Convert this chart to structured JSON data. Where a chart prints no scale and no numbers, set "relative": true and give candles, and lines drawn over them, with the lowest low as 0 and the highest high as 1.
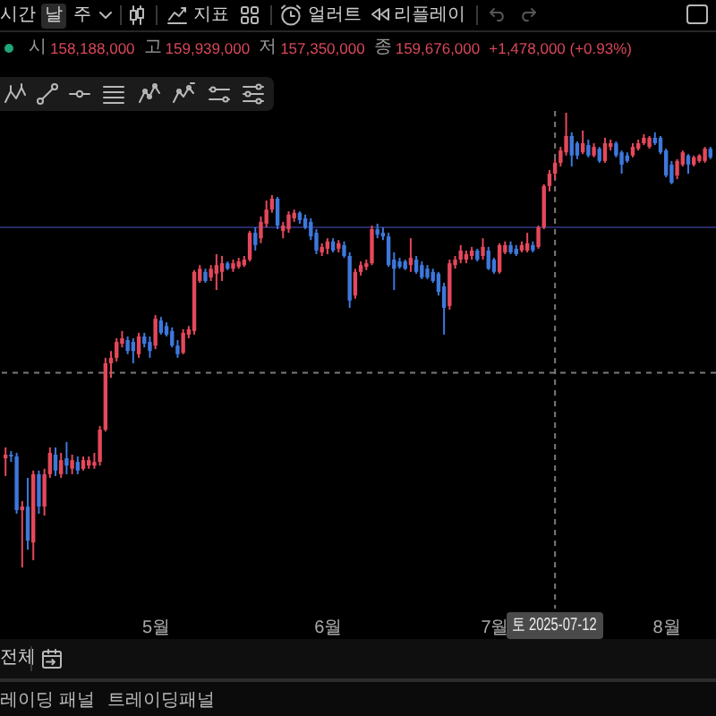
{
  "chart_data": {
    "type": "candlestick",
    "relative": true,
    "x": [
      "2025-04-04",
      "2025-04-05",
      "2025-04-06",
      "2025-04-07",
      "2025-04-08",
      "2025-04-09",
      "2025-04-10",
      "2025-04-11",
      "2025-04-12",
      "2025-04-13",
      "2025-04-14",
      "2025-04-15",
      "2025-04-16",
      "2025-04-17",
      "2025-04-18",
      "2025-04-19",
      "2025-04-20",
      "2025-04-21",
      "2025-04-22",
      "2025-04-23",
      "2025-04-24",
      "2025-04-25",
      "2025-04-26",
      "2025-04-27",
      "2025-04-28",
      "2025-04-29",
      "2025-04-30",
      "2025-05-01",
      "2025-05-02",
      "2025-05-03",
      "2025-05-04",
      "2025-05-05",
      "2025-05-06",
      "2025-05-07",
      "2025-05-08",
      "2025-05-09",
      "2025-05-10",
      "2025-05-11",
      "2025-05-12",
      "2025-05-13",
      "2025-05-14",
      "2025-05-15",
      "2025-05-16",
      "2025-05-17",
      "2025-05-18",
      "2025-05-19",
      "2025-05-20",
      "2025-05-21",
      "2025-05-22",
      "2025-05-23",
      "2025-05-24",
      "2025-05-25",
      "2025-05-26",
      "2025-05-27",
      "2025-05-28",
      "2025-05-29",
      "2025-05-30",
      "2025-05-31",
      "2025-06-01",
      "2025-06-02",
      "2025-06-03",
      "2025-06-04",
      "2025-06-05",
      "2025-06-06",
      "2025-06-07",
      "2025-06-08",
      "2025-06-09",
      "2025-06-10",
      "2025-06-11",
      "2025-06-12",
      "2025-06-13",
      "2025-06-14",
      "2025-06-15",
      "2025-06-16",
      "2025-06-17",
      "2025-06-18",
      "2025-06-19",
      "2025-06-20",
      "2025-06-21",
      "2025-06-22",
      "2025-06-23",
      "2025-06-24",
      "2025-06-25",
      "2025-06-26",
      "2025-06-27",
      "2025-06-28",
      "2025-06-29",
      "2025-06-30",
      "2025-07-01",
      "2025-07-02",
      "2025-07-03",
      "2025-07-04",
      "2025-07-05",
      "2025-07-06",
      "2025-07-07",
      "2025-07-08",
      "2025-07-09",
      "2025-07-10",
      "2025-07-11",
      "2025-07-12",
      "2025-07-13",
      "2025-07-14",
      "2025-07-15",
      "2025-07-16",
      "2025-07-17",
      "2025-07-18",
      "2025-07-19",
      "2025-07-20",
      "2025-07-21",
      "2025-07-22",
      "2025-07-23",
      "2025-07-24",
      "2025-07-25",
      "2025-07-26",
      "2025-07-27",
      "2025-07-28",
      "2025-07-29",
      "2025-07-30",
      "2025-07-31",
      "2025-08-01",
      "2025-08-02",
      "2025-08-03",
      "2025-08-04",
      "2025-08-05",
      "2025-08-06",
      "2025-08-07",
      "2025-08-08",
      "2025-08-09"
    ],
    "ohlc": [
      [
        0.24,
        0.264,
        0.201,
        0.248
      ],
      [
        0.248,
        0.256,
        0.232,
        0.244
      ],
      [
        0.244,
        0.252,
        0.118,
        0.126
      ],
      [
        0.126,
        0.146,
        0,
        0.134
      ],
      [
        0.134,
        0.197,
        0.039,
        0.059
      ],
      [
        0.055,
        0.213,
        0.016,
        0.205
      ],
      [
        0.205,
        0.213,
        0.118,
        0.134
      ],
      [
        0.134,
        0.217,
        0.114,
        0.205
      ],
      [
        0.205,
        0.264,
        0.197,
        0.252
      ],
      [
        0.248,
        0.264,
        0.201,
        0.213
      ],
      [
        0.205,
        0.252,
        0.197,
        0.236
      ],
      [
        0.24,
        0.276,
        0.205,
        0.224
      ],
      [
        0.217,
        0.248,
        0.205,
        0.236
      ],
      [
        0.232,
        0.244,
        0.205,
        0.213
      ],
      [
        0.217,
        0.244,
        0.213,
        0.236
      ],
      [
        0.224,
        0.244,
        0.217,
        0.236
      ],
      [
        0.224,
        0.252,
        0.217,
        0.232
      ],
      [
        0.232,
        0.311,
        0.224,
        0.303
      ],
      [
        0.303,
        0.461,
        0.299,
        0.449
      ],
      [
        0.449,
        0.476,
        0.417,
        0.461
      ],
      [
        0.461,
        0.504,
        0.453,
        0.496
      ],
      [
        0.492,
        0.52,
        0.484,
        0.504
      ],
      [
        0.5,
        0.508,
        0.469,
        0.476
      ],
      [
        0.496,
        0.504,
        0.449,
        0.476
      ],
      [
        0.469,
        0.516,
        0.461,
        0.508
      ],
      [
        0.508,
        0.516,
        0.484,
        0.492
      ],
      [
        0.496,
        0.508,
        0.461,
        0.476
      ],
      [
        0.488,
        0.555,
        0.48,
        0.547
      ],
      [
        0.543,
        0.551,
        0.512,
        0.516
      ],
      [
        0.531,
        0.539,
        0.508,
        0.512
      ],
      [
        0.52,
        0.528,
        0.484,
        0.488
      ],
      [
        0.488,
        0.5,
        0.461,
        0.469
      ],
      [
        0.472,
        0.524,
        0.469,
        0.516
      ],
      [
        0.512,
        0.531,
        0.504,
        0.524
      ],
      [
        0.52,
        0.654,
        0.512,
        0.65
      ],
      [
        0.63,
        0.665,
        0.626,
        0.657
      ],
      [
        0.65,
        0.657,
        0.626,
        0.63
      ],
      [
        0.638,
        0.665,
        0.63,
        0.657
      ],
      [
        0.646,
        0.689,
        0.61,
        0.665
      ],
      [
        0.65,
        0.685,
        0.63,
        0.669
      ],
      [
        0.669,
        0.673,
        0.654,
        0.657
      ],
      [
        0.657,
        0.677,
        0.65,
        0.669
      ],
      [
        0.661,
        0.681,
        0.657,
        0.673
      ],
      [
        0.665,
        0.685,
        0.661,
        0.677
      ],
      [
        0.677,
        0.74,
        0.673,
        0.736
      ],
      [
        0.736,
        0.748,
        0.697,
        0.709
      ],
      [
        0.724,
        0.772,
        0.713,
        0.76
      ],
      [
        0.756,
        0.807,
        0.748,
        0.787
      ],
      [
        0.787,
        0.819,
        0.78,
        0.811
      ],
      [
        0.811,
        0.815,
        0.744,
        0.752
      ],
      [
        0.74,
        0.76,
        0.724,
        0.752
      ],
      [
        0.744,
        0.783,
        0.736,
        0.776
      ],
      [
        0.768,
        0.787,
        0.76,
        0.78
      ],
      [
        0.78,
        0.783,
        0.756,
        0.764
      ],
      [
        0.768,
        0.776,
        0.744,
        0.748
      ],
      [
        0.76,
        0.768,
        0.72,
        0.728
      ],
      [
        0.736,
        0.744,
        0.689,
        0.697
      ],
      [
        0.693,
        0.713,
        0.685,
        0.705
      ],
      [
        0.701,
        0.724,
        0.689,
        0.717
      ],
      [
        0.717,
        0.724,
        0.693,
        0.697
      ],
      [
        0.701,
        0.72,
        0.693,
        0.713
      ],
      [
        0.709,
        0.717,
        0.681,
        0.685
      ],
      [
        0.685,
        0.693,
        0.571,
        0.587
      ],
      [
        0.598,
        0.657,
        0.591,
        0.65
      ],
      [
        0.65,
        0.673,
        0.642,
        0.665
      ],
      [
        0.661,
        0.677,
        0.654,
        0.669
      ],
      [
        0.669,
        0.752,
        0.665,
        0.744
      ],
      [
        0.744,
        0.756,
        0.724,
        0.732
      ],
      [
        0.736,
        0.748,
        0.72,
        0.728
      ],
      [
        0.728,
        0.736,
        0.661,
        0.665
      ],
      [
        0.677,
        0.693,
        0.61,
        0.657
      ],
      [
        0.673,
        0.681,
        0.657,
        0.661
      ],
      [
        0.673,
        0.677,
        0.654,
        0.657
      ],
      [
        0.665,
        0.724,
        0.65,
        0.681
      ],
      [
        0.677,
        0.685,
        0.646,
        0.65
      ],
      [
        0.665,
        0.673,
        0.634,
        0.638
      ],
      [
        0.657,
        0.665,
        0.634,
        0.638
      ],
      [
        0.65,
        0.657,
        0.626,
        0.63
      ],
      [
        0.646,
        0.65,
        0.598,
        0.606
      ],
      [
        0.618,
        0.626,
        0.512,
        0.571
      ],
      [
        0.575,
        0.677,
        0.567,
        0.669
      ],
      [
        0.665,
        0.685,
        0.657,
        0.677
      ],
      [
        0.677,
        0.709,
        0.669,
        0.697
      ],
      [
        0.677,
        0.697,
        0.669,
        0.689
      ],
      [
        0.685,
        0.705,
        0.677,
        0.697
      ],
      [
        0.697,
        0.701,
        0.673,
        0.677
      ],
      [
        0.685,
        0.724,
        0.677,
        0.705
      ],
      [
        0.697,
        0.705,
        0.654,
        0.657
      ],
      [
        0.677,
        0.681,
        0.646,
        0.65
      ],
      [
        0.65,
        0.713,
        0.646,
        0.709
      ],
      [
        0.693,
        0.717,
        0.689,
        0.709
      ],
      [
        0.709,
        0.717,
        0.689,
        0.693
      ],
      [
        0.701,
        0.709,
        0.685,
        0.689
      ],
      [
        0.697,
        0.717,
        0.693,
        0.709
      ],
      [
        0.697,
        0.736,
        0.693,
        0.713
      ],
      [
        0.709,
        0.717,
        0.693,
        0.697
      ],
      [
        0.705,
        0.752,
        0.701,
        0.748
      ],
      [
        0.748,
        0.843,
        0.744,
        0.839
      ],
      [
        0.839,
        0.874,
        0.827,
        0.866
      ],
      [
        0.866,
        0.898,
        0.854,
        0.89
      ],
      [
        0.89,
        0.925,
        0.882,
        0.917
      ],
      [
        0.913,
        1,
        0.906,
        0.949
      ],
      [
        0.949,
        0.957,
        0.882,
        0.906
      ],
      [
        0.933,
        0.937,
        0.898,
        0.906
      ],
      [
        0.913,
        0.961,
        0.909,
        0.933
      ],
      [
        0.929,
        0.941,
        0.902,
        0.906
      ],
      [
        0.906,
        0.933,
        0.902,
        0.925
      ],
      [
        0.921,
        0.925,
        0.89,
        0.894
      ],
      [
        0.894,
        0.945,
        0.89,
        0.933
      ],
      [
        0.925,
        0.941,
        0.917,
        0.933
      ],
      [
        0.933,
        0.937,
        0.902,
        0.906
      ],
      [
        0.913,
        0.917,
        0.866,
        0.886
      ],
      [
        0.906,
        0.913,
        0.89,
        0.894
      ],
      [
        0.906,
        0.933,
        0.902,
        0.925
      ],
      [
        0.921,
        0.941,
        0.917,
        0.933
      ],
      [
        0.933,
        0.953,
        0.929,
        0.945
      ],
      [
        0.925,
        0.949,
        0.921,
        0.945
      ],
      [
        0.945,
        0.957,
        0.929,
        0.933
      ],
      [
        0.945,
        0.949,
        0.909,
        0.913
      ],
      [
        0.917,
        0.921,
        0.858,
        0.862
      ],
      [
        0.886,
        0.894,
        0.843,
        0.846
      ],
      [
        0.862,
        0.898,
        0.854,
        0.894
      ],
      [
        0.886,
        0.917,
        0.882,
        0.913
      ],
      [
        0.906,
        0.909,
        0.866,
        0.886
      ],
      [
        0.886,
        0.906,
        0.882,
        0.902
      ],
      [
        0.894,
        0.909,
        0.89,
        0.906
      ],
      [
        0.894,
        0.925,
        0.89,
        0.921
      ],
      [
        0.921,
        0.925,
        0.898,
        0.902
      ]
    ],
    "colors": [
      "#e5485b",
      "#3d78dc",
      "#3d78dc",
      "#e5485b",
      "#3d78dc",
      "#e5485b",
      "#3d78dc",
      "#e5485b",
      "#e5485b",
      "#3d78dc",
      "#e5485b",
      "#3d78dc",
      "#e5485b",
      "#3d78dc",
      "#e5485b",
      "#e5485b",
      "#e5485b",
      "#e5485b",
      "#e5485b",
      "#e5485b",
      "#e5485b",
      "#e5485b",
      "#3d78dc",
      "#3d78dc",
      "#e5485b",
      "#3d78dc",
      "#3d78dc",
      "#e5485b",
      "#3d78dc",
      "#3d78dc",
      "#3d78dc",
      "#3d78dc",
      "#e5485b",
      "#e5485b",
      "#e5485b",
      "#e5485b",
      "#3d78dc",
      "#e5485b",
      "#e5485b",
      "#e5485b",
      "#3d78dc",
      "#e5485b",
      "#e5485b",
      "#e5485b",
      "#e5485b",
      "#3d78dc",
      "#e5485b",
      "#e5485b",
      "#e5485b",
      "#3d78dc",
      "#e5485b",
      "#e5485b",
      "#e5485b",
      "#3d78dc",
      "#3d78dc",
      "#3d78dc",
      "#3d78dc",
      "#e5485b",
      "#e5485b",
      "#3d78dc",
      "#e5485b",
      "#3d78dc",
      "#3d78dc",
      "#e5485b",
      "#e5485b",
      "#e5485b",
      "#e5485b",
      "#3d78dc",
      "#3d78dc",
      "#3d78dc",
      "#3d78dc",
      "#3d78dc",
      "#3d78dc",
      "#e5485b",
      "#3d78dc",
      "#3d78dc",
      "#3d78dc",
      "#3d78dc",
      "#3d78dc",
      "#3d78dc",
      "#e5485b",
      "#e5485b",
      "#e5485b",
      "#e5485b",
      "#e5485b",
      "#3d78dc",
      "#e5485b",
      "#3d78dc",
      "#3d78dc",
      "#e5485b",
      "#e5485b",
      "#3d78dc",
      "#3d78dc",
      "#e5485b",
      "#e5485b",
      "#3d78dc",
      "#e5485b",
      "#e5485b",
      "#e5485b",
      "#e5485b",
      "#e5485b",
      "#e5485b",
      "#3d78dc",
      "#3d78dc",
      "#e5485b",
      "#3d78dc",
      "#e5485b",
      "#3d78dc",
      "#e5485b",
      "#e5485b",
      "#3d78dc",
      "#3d78dc",
      "#3d78dc",
      "#e5485b",
      "#e5485b",
      "#e5485b",
      "#e5485b",
      "#3d78dc",
      "#3d78dc",
      "#3d78dc",
      "#3d78dc",
      "#e5485b",
      "#e5485b",
      "#3d78dc",
      "#e5485b",
      "#e5485b",
      "#e5485b",
      "#3d78dc"
    ],
    "xlim": [
      "2025-04-03",
      "2025-08-10"
    ],
    "xticks": [
      {
        "value": "2025-05-01",
        "label": "5월"
      },
      {
        "value": "2025-06-01",
        "label": "6월"
      },
      {
        "value": "2025-07-01",
        "label": "7월"
      },
      {
        "value": "2025-08-01",
        "label": "8월"
      }
    ],
    "ref_lines": [
      {
        "axis": "x",
        "value": "2025-07-12",
        "label": "토 2025-07-12",
        "color": "#7a7a7a",
        "line_style": "dashed"
      },
      {
        "axis": "y",
        "value": 0.428,
        "color": "#7a7a7a",
        "line_style": "dashed"
      },
      {
        "axis": "y",
        "value": 0.748,
        "color": "#262a66",
        "line_style": "solid"
      }
    ],
    "annotations": [
      "시간",
      "날",
      "주",
      "지표",
      "얼러트",
      "리플레이",
      "시",
      "158,188,000",
      "고",
      "159,939,000",
      "저",
      "157,350,000",
      "종",
      "159,676,000",
      "+1,478,000 (+0.93%)",
      "전체",
      "레이딩 패널",
      "트레이딩패널"
    ]
  }
}
